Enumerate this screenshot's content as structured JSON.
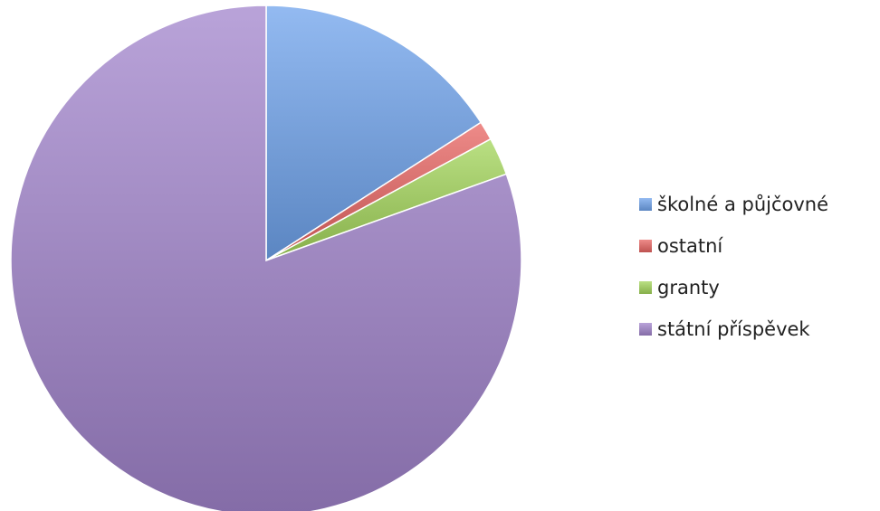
{
  "chart_data": {
    "type": "pie",
    "title": "",
    "start_angle_deg": 0,
    "direction": "clockwise",
    "legend_position": "right",
    "slices": [
      {
        "name": "školné a půjčovné",
        "value": 15.9,
        "color": "#6fa3ec"
      },
      {
        "name": "ostatní",
        "value": 1.2,
        "color": "#e86461"
      },
      {
        "name": "granty",
        "value": 2.4,
        "color": "#a3d65a"
      },
      {
        "name": "státní příspěvek",
        "value": 80.5,
        "color": "#a184cc"
      }
    ]
  }
}
